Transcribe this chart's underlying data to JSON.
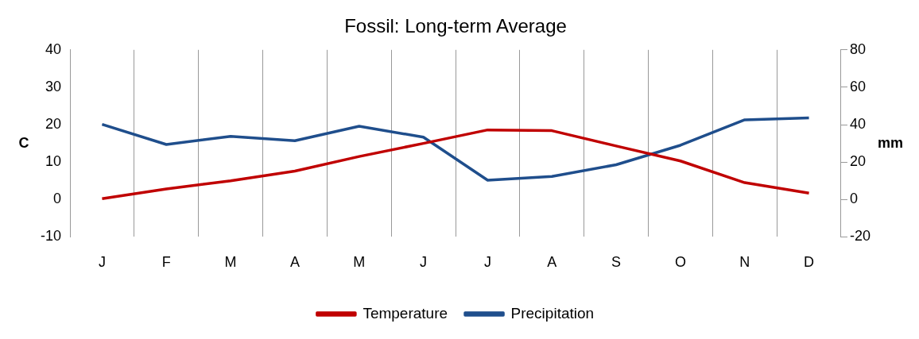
{
  "chart_data": {
    "type": "line",
    "title": "Fossil: Long-term Average",
    "ylabel": "C",
    "y2label": "mm",
    "categories": [
      "J",
      "F",
      "M",
      "A",
      "M",
      "J",
      "J",
      "A",
      "S",
      "O",
      "N",
      "D"
    ],
    "series": [
      {
        "name": "Temperature",
        "color": "#c00000",
        "values": [
          0.2,
          2.8,
          5,
          7.6,
          11.5,
          15,
          18.6,
          18.4,
          14.3,
          10.3,
          4.5,
          1.7
        ]
      },
      {
        "name": "Precipitation",
        "color": "#1f4e8c",
        "axis": "y2",
        "values": [
          40.2,
          29.4,
          33.8,
          31.4,
          39.2,
          33.3,
          10.3,
          12.3,
          18.6,
          29,
          42.6,
          43.6
        ]
      }
    ],
    "ylim": [
      -10,
      40
    ],
    "yticks": [
      -10,
      0,
      10,
      20,
      30,
      40
    ],
    "y2lim": [
      -20,
      80
    ],
    "y2ticks": [
      -20,
      0,
      20,
      40,
      60,
      80
    ],
    "grid": "x",
    "legend": "bottom",
    "marker": "none",
    "line_style": "solid"
  }
}
